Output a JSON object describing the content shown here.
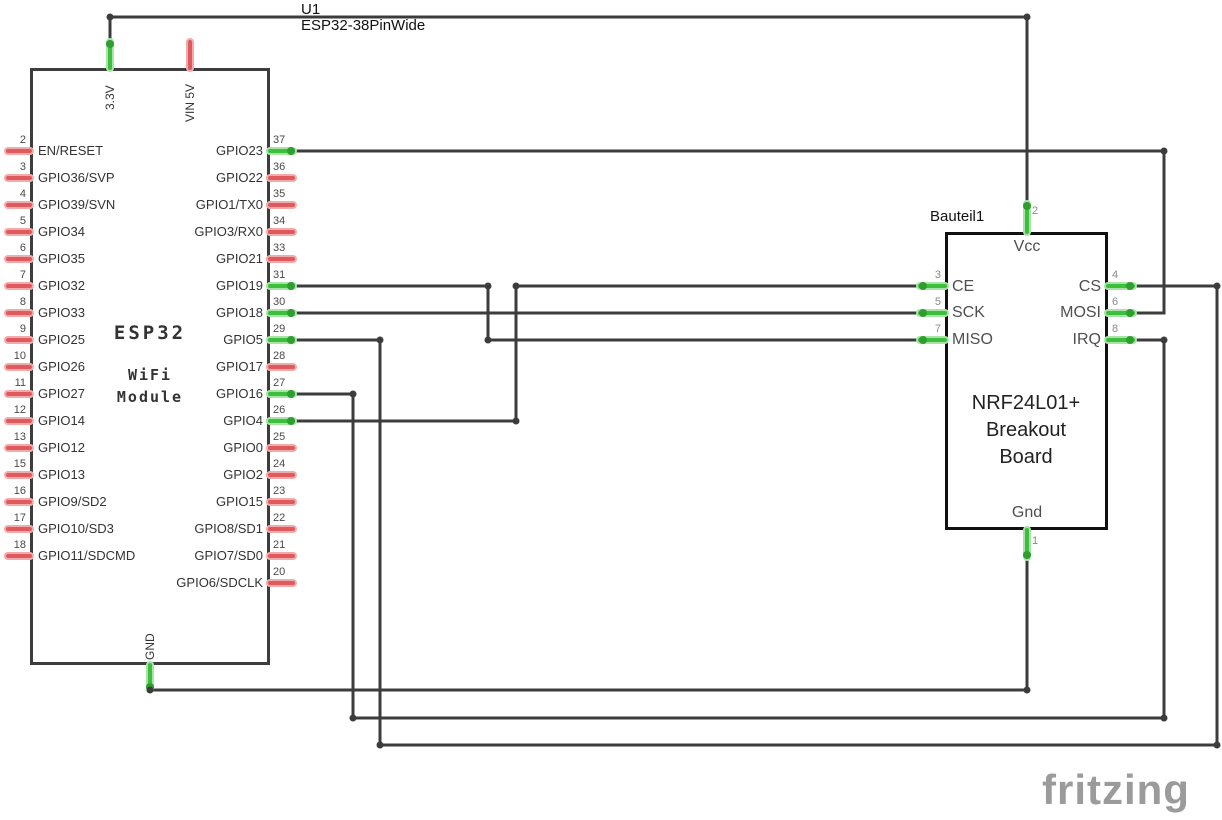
{
  "schematic": {
    "esp32": {
      "designator": "U1",
      "part_label": "ESP32-38PinWide",
      "name": "ESP32",
      "subtitle_line1": "WiFi",
      "subtitle_line2": "Module",
      "top_pins": [
        {
          "num": "",
          "label": "3.3V",
          "connected": true
        },
        {
          "num": "",
          "label": "VIN 5V",
          "connected": false
        }
      ],
      "bottom_pins": [
        {
          "num": "",
          "label": "GND",
          "connected": true
        }
      ],
      "left_pins": [
        {
          "num": "2",
          "label": "EN/RESET",
          "connected": false
        },
        {
          "num": "3",
          "label": "GPIO36/SVP",
          "connected": false
        },
        {
          "num": "4",
          "label": "GPIO39/SVN",
          "connected": false
        },
        {
          "num": "5",
          "label": "GPIO34",
          "connected": false
        },
        {
          "num": "6",
          "label": "GPIO35",
          "connected": false
        },
        {
          "num": "7",
          "label": "GPIO32",
          "connected": false
        },
        {
          "num": "8",
          "label": "GPIO33",
          "connected": false
        },
        {
          "num": "9",
          "label": "GPIO25",
          "connected": false
        },
        {
          "num": "10",
          "label": "GPIO26",
          "connected": false
        },
        {
          "num": "11",
          "label": "GPIO27",
          "connected": false
        },
        {
          "num": "12",
          "label": "GPIO14",
          "connected": false
        },
        {
          "num": "13",
          "label": "GPIO12",
          "connected": false
        },
        {
          "num": "15",
          "label": "GPIO13",
          "connected": false
        },
        {
          "num": "16",
          "label": "GPIO9/SD2",
          "connected": false
        },
        {
          "num": "17",
          "label": "GPIO10/SD3",
          "connected": false
        },
        {
          "num": "18",
          "label": "GPIO11/SDCMD",
          "connected": false
        }
      ],
      "right_pins": [
        {
          "num": "37",
          "label": "GPIO23",
          "connected": true
        },
        {
          "num": "36",
          "label": "GPIO22",
          "connected": false
        },
        {
          "num": "35",
          "label": "GPIO1/TX0",
          "connected": false
        },
        {
          "num": "34",
          "label": "GPIO3/RX0",
          "connected": false
        },
        {
          "num": "33",
          "label": "GPIO21",
          "connected": false
        },
        {
          "num": "31",
          "label": "GPIO19",
          "connected": true
        },
        {
          "num": "30",
          "label": "GPIO18",
          "connected": true
        },
        {
          "num": "29",
          "label": "GPIO5",
          "connected": true
        },
        {
          "num": "28",
          "label": "GPIO17",
          "connected": false
        },
        {
          "num": "27",
          "label": "GPIO16",
          "connected": true
        },
        {
          "num": "26",
          "label": "GPIO4",
          "connected": true
        },
        {
          "num": "25",
          "label": "GPIO0",
          "connected": false
        },
        {
          "num": "24",
          "label": "GPIO2",
          "connected": false
        },
        {
          "num": "23",
          "label": "GPIO15",
          "connected": false
        },
        {
          "num": "22",
          "label": "GPIO8/SD1",
          "connected": false
        },
        {
          "num": "21",
          "label": "GPIO7/SD0",
          "connected": false
        },
        {
          "num": "20",
          "label": "GPIO6/SDCLK",
          "connected": false
        }
      ]
    },
    "nrf": {
      "designator": "Bauteil1",
      "title_lines": [
        "NRF24L01+",
        "Breakout",
        "Board"
      ],
      "top_pin": {
        "num": "2",
        "label": "Vcc",
        "connected": true
      },
      "bottom_pin": {
        "num": "1",
        "label": "Gnd",
        "connected": true
      },
      "left_pins": [
        {
          "num": "3",
          "label": "CE",
          "connected": true
        },
        {
          "num": "5",
          "label": "SCK",
          "connected": true
        },
        {
          "num": "7",
          "label": "MISO",
          "connected": true
        }
      ],
      "right_pins": [
        {
          "num": "4",
          "label": "CS",
          "connected": true
        },
        {
          "num": "6",
          "label": "MOSI",
          "connected": true
        },
        {
          "num": "8",
          "label": "IRQ",
          "connected": true
        }
      ]
    },
    "nets": [
      {
        "net": "3V3",
        "from": "U1.3.3V",
        "to": "Bauteil1.Vcc.pin2"
      },
      {
        "net": "GND",
        "from": "U1.GND",
        "to": "Bauteil1.Gnd.pin1"
      },
      {
        "net": "MOSI",
        "from": "U1.GPIO23.pin37",
        "to": "Bauteil1.MOSI.pin6"
      },
      {
        "net": "MISO",
        "from": "U1.GPIO19.pin31",
        "to": "Bauteil1.MISO.pin7"
      },
      {
        "net": "SCK",
        "from": "U1.GPIO18.pin30",
        "to": "Bauteil1.SCK.pin5"
      },
      {
        "net": "CS",
        "from": "U1.GPIO5.pin29",
        "to": "Bauteil1.CS.pin4"
      },
      {
        "net": "IRQ",
        "from": "U1.GPIO16.pin27",
        "to": "Bauteil1.IRQ.pin8"
      },
      {
        "net": "CE",
        "from": "U1.GPIO4.pin26",
        "to": "Bauteil1.CE.pin3"
      }
    ],
    "watermark": "fritzing",
    "colors": {
      "wire": "#3C3C3C",
      "connected_pin": "#3DBE3D",
      "connected_pin_halo": "#A9E3A9",
      "unconnected_pin": "#DE5A5D",
      "unconnected_pin_halo": "#F2ABAC",
      "junction_dot": "#2F9E2F",
      "bend_dot": "#3C3C3C",
      "watermark": "#9B9B9B"
    }
  }
}
